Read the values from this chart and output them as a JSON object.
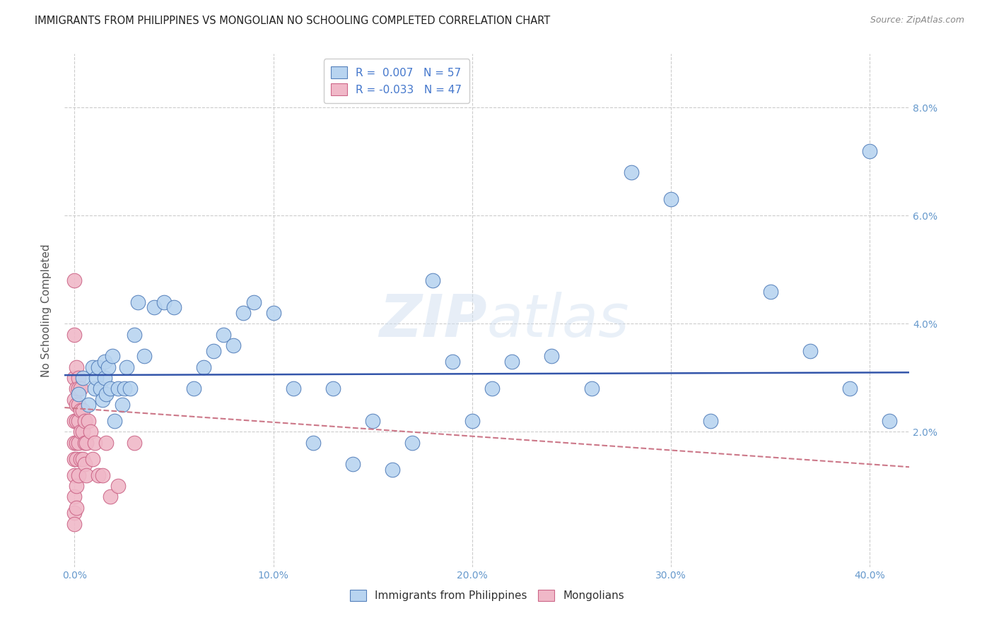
{
  "title": "IMMIGRANTS FROM PHILIPPINES VS MONGOLIAN NO SCHOOLING COMPLETED CORRELATION CHART",
  "source": "Source: ZipAtlas.com",
  "ylabel": "No Schooling Completed",
  "x_tick_labels": [
    "0.0%",
    "10.0%",
    "20.0%",
    "30.0%",
    "40.0%"
  ],
  "x_tick_values": [
    0.0,
    0.1,
    0.2,
    0.3,
    0.4
  ],
  "y_tick_labels": [
    "2.0%",
    "4.0%",
    "6.0%",
    "8.0%"
  ],
  "y_tick_values": [
    0.02,
    0.04,
    0.06,
    0.08
  ],
  "xlim": [
    -0.005,
    0.42
  ],
  "ylim": [
    -0.005,
    0.09
  ],
  "legend_entries": [
    {
      "label": "R =  0.007   N = 57",
      "color": "#b8d4f0"
    },
    {
      "label": "R = -0.033   N = 47",
      "color": "#f0b8c8"
    }
  ],
  "legend_labels_bottom": [
    "Immigrants from Philippines",
    "Mongolians"
  ],
  "philippines_color": "#b8d4f0",
  "mongolian_color": "#f0b8c8",
  "philippines_edge_color": "#5580bb",
  "mongolian_edge_color": "#cc6688",
  "trend_philippines_color": "#3355aa",
  "trend_mongolian_color": "#cc7788",
  "watermark_color": "#c8d8e8",
  "background_color": "#ffffff",
  "grid_color": "#cccccc",
  "philippines_x": [
    0.002,
    0.004,
    0.007,
    0.009,
    0.01,
    0.011,
    0.012,
    0.013,
    0.014,
    0.015,
    0.015,
    0.016,
    0.017,
    0.018,
    0.019,
    0.02,
    0.022,
    0.024,
    0.025,
    0.026,
    0.028,
    0.03,
    0.032,
    0.035,
    0.04,
    0.045,
    0.05,
    0.06,
    0.065,
    0.07,
    0.075,
    0.08,
    0.085,
    0.09,
    0.1,
    0.11,
    0.12,
    0.13,
    0.14,
    0.15,
    0.16,
    0.17,
    0.18,
    0.19,
    0.2,
    0.21,
    0.22,
    0.24,
    0.26,
    0.28,
    0.3,
    0.32,
    0.35,
    0.37,
    0.39,
    0.4,
    0.41
  ],
  "philippines_y": [
    0.027,
    0.03,
    0.025,
    0.032,
    0.028,
    0.03,
    0.032,
    0.028,
    0.026,
    0.033,
    0.03,
    0.027,
    0.032,
    0.028,
    0.034,
    0.022,
    0.028,
    0.025,
    0.028,
    0.032,
    0.028,
    0.038,
    0.044,
    0.034,
    0.043,
    0.044,
    0.043,
    0.028,
    0.032,
    0.035,
    0.038,
    0.036,
    0.042,
    0.044,
    0.042,
    0.028,
    0.018,
    0.028,
    0.014,
    0.022,
    0.013,
    0.018,
    0.048,
    0.033,
    0.022,
    0.028,
    0.033,
    0.034,
    0.028,
    0.068,
    0.063,
    0.022,
    0.046,
    0.035,
    0.028,
    0.072,
    0.022
  ],
  "mongolian_x": [
    0.0,
    0.0,
    0.0,
    0.0,
    0.0,
    0.0,
    0.0,
    0.0,
    0.0,
    0.0,
    0.0,
    0.001,
    0.001,
    0.001,
    0.001,
    0.001,
    0.001,
    0.001,
    0.001,
    0.002,
    0.002,
    0.002,
    0.002,
    0.002,
    0.002,
    0.003,
    0.003,
    0.003,
    0.003,
    0.004,
    0.004,
    0.004,
    0.005,
    0.005,
    0.005,
    0.006,
    0.006,
    0.007,
    0.008,
    0.009,
    0.01,
    0.012,
    0.014,
    0.016,
    0.018,
    0.022,
    0.03
  ],
  "mongolian_y": [
    0.048,
    0.038,
    0.03,
    0.026,
    0.022,
    0.018,
    0.015,
    0.012,
    0.008,
    0.005,
    0.003,
    0.032,
    0.028,
    0.025,
    0.022,
    0.018,
    0.015,
    0.01,
    0.006,
    0.03,
    0.028,
    0.025,
    0.022,
    0.018,
    0.012,
    0.028,
    0.024,
    0.02,
    0.015,
    0.024,
    0.02,
    0.015,
    0.022,
    0.018,
    0.014,
    0.018,
    0.012,
    0.022,
    0.02,
    0.015,
    0.018,
    0.012,
    0.012,
    0.018,
    0.008,
    0.01,
    0.018
  ],
  "trend_phil_y_start": 0.0305,
  "trend_phil_y_end": 0.031,
  "trend_mongo_y_start": 0.0245,
  "trend_mongo_y_end": 0.0135
}
